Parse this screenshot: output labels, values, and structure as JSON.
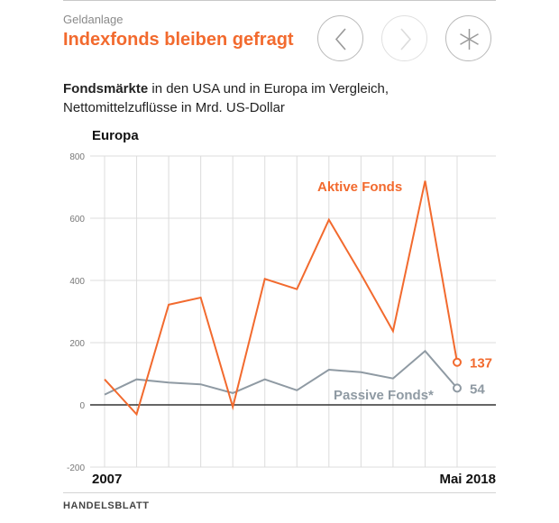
{
  "header": {
    "kicker": "Geldanlage",
    "title": "Indexfonds bleiben gefragt",
    "subtitle_bold": "Fondsmärkte",
    "subtitle_rest": " in den USA und in Europa im Vergleich, Nettomittelzuflüsse in Mrd. US-Dollar"
  },
  "nav": {
    "prev_icon": "chevron-left-icon",
    "next_icon": "chevron-right-icon",
    "share_icon": "asterisk-icon"
  },
  "footer": {
    "source": "HANDELSBLATT"
  },
  "colors": {
    "accent": "#f26a2e",
    "passive": "#8f9aa3",
    "grid": "#d9d9d9",
    "text": "#1a1a1a"
  },
  "chart_data": {
    "type": "line",
    "title": "Europa",
    "xlabel": "",
    "ylabel": "",
    "ylim": [
      -200,
      800
    ],
    "yticks": [
      800,
      600,
      400,
      200,
      0,
      -200
    ],
    "x_tick_labels": [
      "2007",
      "Mai 2018"
    ],
    "grid": true,
    "series": [
      {
        "name": "Aktive Fonds",
        "color": "#f26a2e",
        "values": [
          82,
          -30,
          322,
          345,
          -7,
          405,
          372,
          595,
          420,
          237,
          720,
          137
        ],
        "end_label": "137"
      },
      {
        "name": "Passive Fonds*",
        "color": "#8f9aa3",
        "values": [
          33,
          82,
          72,
          66,
          38,
          82,
          47,
          113,
          105,
          85,
          173,
          54
        ],
        "end_label": "54"
      }
    ]
  }
}
